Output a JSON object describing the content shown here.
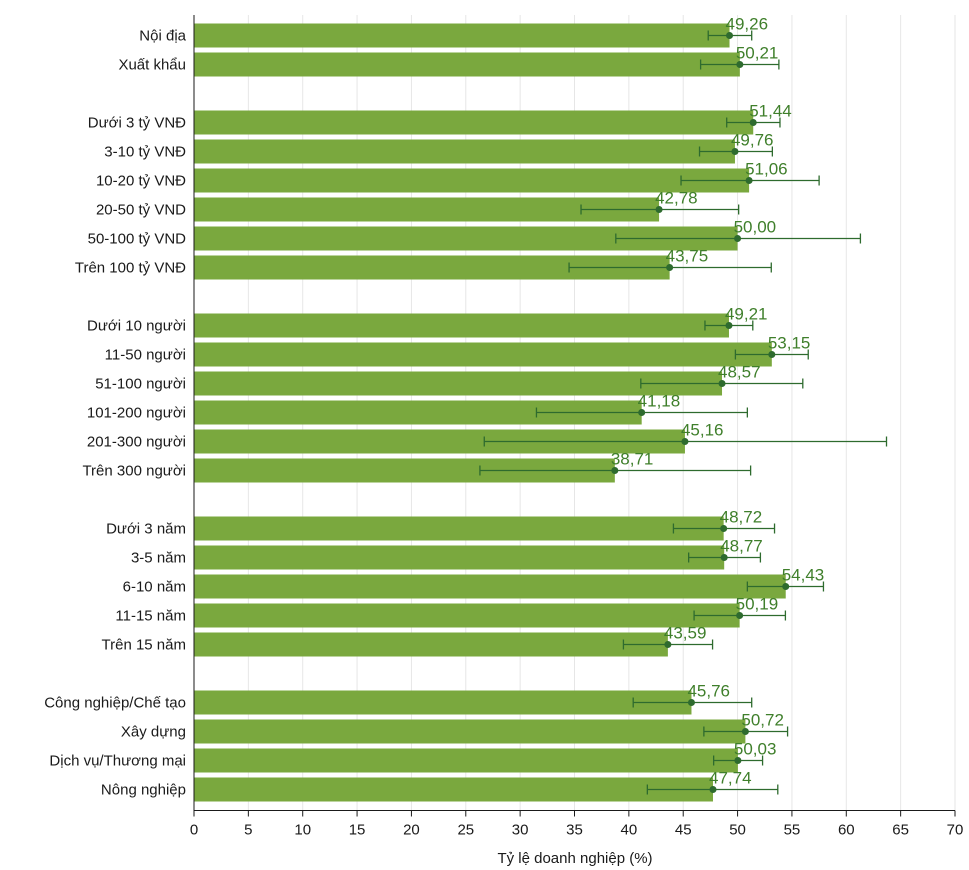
{
  "chart_data": {
    "type": "bar",
    "orientation": "horizontal",
    "xlabel": "Tỷ lệ doanh nghiệp (%)",
    "ylabel": "",
    "title": "",
    "xlim": [
      0,
      70
    ],
    "xticks": [
      0,
      5,
      10,
      15,
      20,
      25,
      30,
      35,
      40,
      45,
      50,
      55,
      60,
      65,
      70
    ],
    "grid": "vertical",
    "bar_color": "#7aa83e",
    "point_color": "#2e6b2e",
    "label_color": "#3f7f2b",
    "groups": [
      {
        "categories": [
          "Nội địa",
          "Xuất khẩu"
        ],
        "values": [
          49.26,
          50.21
        ],
        "value_labels": [
          "49,26",
          "50,21"
        ],
        "err_low": [
          47.3,
          46.6
        ],
        "err_high": [
          51.3,
          53.8
        ]
      },
      {
        "categories": [
          "Dưới 3 tỷ VNĐ",
          "3-10 tỷ VNĐ",
          "10-20 tỷ VNĐ",
          "20-50 tỷ VND",
          "50-100 tỷ VND",
          "Trên 100 tỷ VNĐ"
        ],
        "values": [
          51.44,
          49.76,
          51.06,
          42.78,
          50.0,
          43.75
        ],
        "value_labels": [
          "51,44",
          "49,76",
          "51,06",
          "42,78",
          "50,00",
          "43,75"
        ],
        "err_low": [
          49.0,
          46.5,
          44.8,
          35.6,
          38.8,
          34.5
        ],
        "err_high": [
          53.9,
          53.2,
          57.5,
          50.1,
          61.3,
          53.1
        ]
      },
      {
        "categories": [
          "Dưới 10 người",
          "11-50 người",
          "51-100 người",
          "101-200 người",
          "201-300 người",
          "Trên 300 người"
        ],
        "values": [
          49.21,
          53.15,
          48.57,
          41.18,
          45.16,
          38.71
        ],
        "value_labels": [
          "49,21",
          "53,15",
          "48,57",
          "41,18",
          "45,16",
          "38,71"
        ],
        "err_low": [
          47.0,
          49.8,
          41.1,
          31.5,
          26.7,
          26.3
        ],
        "err_high": [
          51.4,
          56.5,
          56.0,
          50.9,
          63.7,
          51.2
        ]
      },
      {
        "categories": [
          "Dưới 3 năm",
          "3-5 năm",
          "6-10 năm",
          "11-15 năm",
          "Trên 15 năm"
        ],
        "values": [
          48.72,
          48.77,
          54.43,
          50.19,
          43.59
        ],
        "value_labels": [
          "48,72",
          "48,77",
          "54,43",
          "50,19",
          "43,59"
        ],
        "err_low": [
          44.1,
          45.5,
          50.9,
          46.0,
          39.5
        ],
        "err_high": [
          53.4,
          52.1,
          57.9,
          54.4,
          47.7
        ]
      },
      {
        "categories": [
          "Công nghiệp/Chế tạo",
          "Xây dựng",
          "Dịch vụ/Thương mại",
          "Nông nghiệp"
        ],
        "values": [
          45.76,
          50.72,
          50.03,
          47.74
        ],
        "value_labels": [
          "45,76",
          "50,72",
          "50,03",
          "47,74"
        ],
        "err_low": [
          40.4,
          46.9,
          47.8,
          41.7
        ],
        "err_high": [
          51.3,
          54.6,
          52.3,
          53.7
        ]
      }
    ]
  }
}
